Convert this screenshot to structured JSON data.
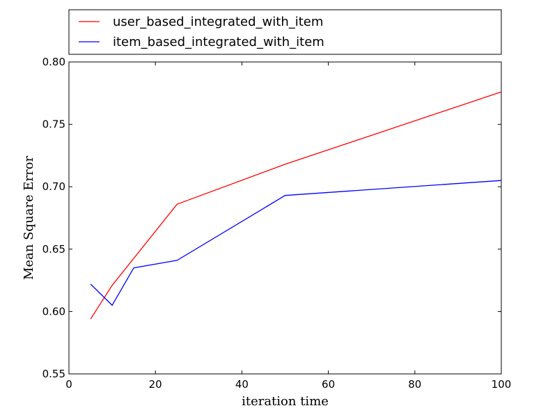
{
  "chart_data": {
    "type": "line",
    "title": "",
    "xlabel": "iteration time",
    "ylabel": "Mean Square Error",
    "xlim": [
      0,
      100
    ],
    "ylim": [
      0.55,
      0.8
    ],
    "xticks": [
      0,
      20,
      40,
      60,
      80,
      100
    ],
    "xtick_labels": [
      "0",
      "20",
      "40",
      "60",
      "80",
      "100"
    ],
    "yticks": [
      0.55,
      0.6,
      0.65,
      0.7,
      0.75,
      0.8
    ],
    "ytick_labels": [
      "0.55",
      "0.60",
      "0.65",
      "0.70",
      "0.75",
      "0.80"
    ],
    "grid": false,
    "legend_position": "top, above plot",
    "series": [
      {
        "name": "user_based_integrated_with_item",
        "color": "#ff0000",
        "x": [
          5,
          10,
          25,
          50,
          100
        ],
        "y": [
          0.594,
          0.621,
          0.686,
          0.718,
          0.776
        ]
      },
      {
        "name": "item_based_integrated_with_item",
        "color": "#0000ff",
        "x": [
          5,
          10,
          15,
          25,
          50,
          100
        ],
        "y": [
          0.622,
          0.605,
          0.635,
          0.641,
          0.693,
          0.705
        ]
      }
    ]
  }
}
